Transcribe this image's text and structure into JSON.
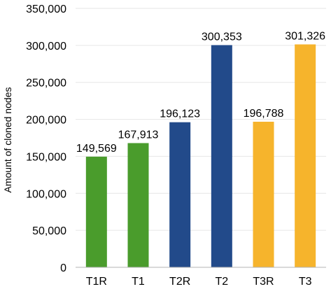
{
  "chart_data": {
    "type": "bar",
    "title": "",
    "xlabel": "",
    "ylabel": "Amount of cloned nodes",
    "categories": [
      "T1R",
      "T1",
      "T2R",
      "T2",
      "T3R",
      "T3"
    ],
    "values": [
      149569,
      167913,
      196123,
      300353,
      196788,
      301326
    ],
    "value_labels": [
      "149,569",
      "167,913",
      "196,123",
      "300,353",
      "196,788",
      "301,326"
    ],
    "bar_colors": [
      "#4a9c2c",
      "#4a9c2c",
      "#224a8a",
      "#224a8a",
      "#f6b42c",
      "#f6b42c"
    ],
    "ylim": [
      0,
      350000
    ],
    "yticks": [
      0,
      50000,
      100000,
      150000,
      200000,
      250000,
      300000,
      350000
    ],
    "ytick_labels": [
      "0",
      "50,000",
      "100,000",
      "150,000",
      "200,000",
      "250,000",
      "300,000",
      "350,000"
    ],
    "grid": true,
    "grid_color": "#e6e6e6",
    "axis_color": "#b3b3b3"
  }
}
